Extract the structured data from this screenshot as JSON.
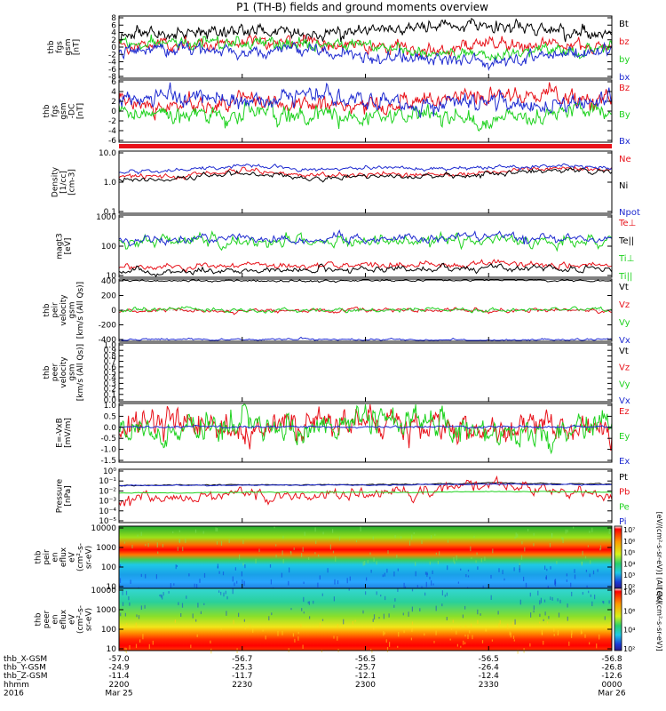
{
  "title": "P1 (TH-B) fields and ground moments overview",
  "colors": {
    "black": "#000000",
    "red": "#e8131b",
    "green": "#1fd21f",
    "blue": "#1f2bd0"
  },
  "panels": [
    {
      "id": "fgs-gsm",
      "ylabel": [
        "thb",
        "fgs",
        "gsm",
        "[nT]"
      ],
      "yticks": [
        "8",
        "6",
        "4",
        "2",
        "0",
        "-2",
        "-4",
        "-6",
        "-8"
      ],
      "legend": [
        {
          "text": "Bt",
          "color": "black"
        },
        {
          "text": "bz",
          "color": "red"
        },
        {
          "text": "by",
          "color": "green"
        },
        {
          "text": "bx",
          "color": "blue"
        }
      ]
    },
    {
      "id": "fgs-gsm-dc",
      "ylabel": [
        "thb",
        "fgs",
        "gsm",
        "-DC",
        "[nT]"
      ],
      "yticks": [
        "6",
        "4",
        "2",
        "0",
        "-2",
        "-4",
        "-6"
      ],
      "legend": [
        {
          "text": "Bz",
          "color": "red"
        },
        {
          "text": "By",
          "color": "green"
        },
        {
          "text": "Bx",
          "color": "blue"
        }
      ]
    },
    {
      "id": "density",
      "ylabel": [
        "Density",
        "[1/cc]",
        "[cm-3]"
      ],
      "yticks": [
        "10.0",
        "1.0",
        "0.1"
      ],
      "legend": [
        {
          "text": "Ne",
          "color": "red"
        },
        {
          "text": "Ni",
          "color": "black"
        },
        {
          "text": "Npot",
          "color": "blue"
        }
      ]
    },
    {
      "id": "temperature",
      "ylabel": [
        "magt3",
        "[eV]"
      ],
      "yticks": [
        "1000",
        "100",
        "10"
      ],
      "legend": [
        {
          "text": "Te⊥",
          "color": "red"
        },
        {
          "text": "Te||",
          "color": "black"
        },
        {
          "text": "Ti⊥",
          "color": "green"
        },
        {
          "text": "Ti||",
          "color": "green"
        }
      ]
    },
    {
      "id": "peir-velocity",
      "ylabel": [
        "thb",
        "peir",
        "velocity",
        "gsm",
        "[km/s (All Qs)]"
      ],
      "yticks": [
        "400",
        "200",
        "0",
        "-200",
        "-400"
      ],
      "legend": [
        {
          "text": "Vt",
          "color": "black"
        },
        {
          "text": "Vz",
          "color": "red"
        },
        {
          "text": "Vy",
          "color": "green"
        },
        {
          "text": "Vx",
          "color": "blue"
        }
      ]
    },
    {
      "id": "peer-velocity",
      "ylabel": [
        "thb",
        "peer",
        "velocity",
        "gsm",
        "[km/s (All Qs)]"
      ],
      "yticks": [
        "1.0",
        "0.9",
        "0.8",
        "0.7",
        "0.6",
        "0.5",
        "0.4",
        "0.3",
        "0.2",
        "0.1",
        "0.0"
      ],
      "legend": [
        {
          "text": "Vt",
          "color": "black"
        },
        {
          "text": "Vz",
          "color": "red"
        },
        {
          "text": "Vy",
          "color": "green"
        },
        {
          "text": "Vx",
          "color": "blue"
        }
      ]
    },
    {
      "id": "efield",
      "ylabel": [
        "E=-VxB",
        "[mV/m]"
      ],
      "yticks": [
        "1.0",
        "0.5",
        "0.0",
        "-0.5",
        "-1.0",
        "-1.5"
      ],
      "legend": [
        {
          "text": "Ez",
          "color": "red"
        },
        {
          "text": "Ey",
          "color": "green"
        },
        {
          "text": "Ex",
          "color": "blue"
        }
      ]
    },
    {
      "id": "pressure",
      "ylabel": [
        "Pressure",
        "[nPa]"
      ],
      "yticks": [
        "10⁰",
        "10⁻¹",
        "10⁻²",
        "10⁻³",
        "10⁻⁴",
        "10⁻⁵"
      ],
      "legend": [
        {
          "text": "Pt",
          "color": "black"
        },
        {
          "text": "Pb",
          "color": "red"
        },
        {
          "text": "Pe",
          "color": "green"
        },
        {
          "text": "Pi",
          "color": "blue"
        }
      ]
    },
    {
      "id": "peir-spec",
      "ylabel": [
        "thb",
        "peir",
        "en",
        "eflux",
        "eV",
        "(cm²-s-",
        "sr-eV)"
      ],
      "yticks": [
        "10000",
        "1000",
        "100",
        "10"
      ],
      "colorbar": [
        "10⁷",
        "10⁶",
        "10⁵",
        "10⁴",
        "10³",
        "10²"
      ],
      "cblabel": "[eV/(cm²-s-sr-eV)] (All Qs)"
    },
    {
      "id": "peer-spec",
      "ylabel": [
        "thb",
        "peer",
        "en",
        "eflux",
        "eV",
        "(cm²-s-",
        "sr-eV)"
      ],
      "yticks": [
        "10000",
        "1000",
        "100",
        "10"
      ],
      "colorbar": [
        "10⁸",
        "10⁶",
        "10⁴",
        "10²"
      ],
      "cblabel": "[eV/(cm²-s-sr-eV)]"
    }
  ],
  "xaxis": {
    "rows": [
      {
        "label": "thb_X-GSM",
        "values": [
          "-57.0",
          "-56.7",
          "-56.5",
          "-56.5",
          "-56.8"
        ]
      },
      {
        "label": "thb_Y-GSM",
        "values": [
          "-24.9",
          "-25.3",
          "-25.7",
          "-26.4",
          "-26.8"
        ]
      },
      {
        "label": "thb_Z-GSM",
        "values": [
          "-11.4",
          "-11.7",
          "-12.1",
          "-12.4",
          "-12.6"
        ]
      },
      {
        "label": "hhmm",
        "values": [
          "2200",
          "2230",
          "2300",
          "2330",
          "0000"
        ]
      },
      {
        "label": "2016",
        "values": [
          "Mar 25",
          "",
          "",
          "",
          "Mar 26"
        ]
      }
    ]
  },
  "chart_data": {
    "type": "line",
    "title": "P1 (TH-B) fields and ground moments overview",
    "time_ticks": [
      "2200",
      "2230",
      "2300",
      "2330",
      "0000"
    ],
    "panels": [
      {
        "name": "thb fgs gsm",
        "unit": "nT",
        "ylim": [
          -8,
          8
        ],
        "series": [
          {
            "name": "Bt",
            "values": [
              3,
              3.5,
              4,
              3.5,
              4,
              5.5,
              6,
              4.5,
              3
            ]
          },
          {
            "name": "bz",
            "values": [
              1,
              0.5,
              0.8,
              1,
              0.5,
              -1,
              1,
              1,
              0
            ]
          },
          {
            "name": "by",
            "values": [
              1,
              1.5,
              0.5,
              1,
              1,
              -2,
              -2,
              -1,
              0
            ]
          },
          {
            "name": "bx",
            "values": [
              -1,
              -0.5,
              -1.5,
              -1,
              -2,
              -3,
              -4,
              -2,
              -1
            ]
          }
        ]
      },
      {
        "name": "thb fgs gsm-DC",
        "unit": "nT",
        "ylim": [
          -6,
          6
        ],
        "series": [
          {
            "name": "Bz",
            "values": [
              2,
              1,
              2,
              1,
              1,
              2,
              3,
              3,
              2
            ]
          },
          {
            "name": "By",
            "values": [
              0,
              -1,
              0,
              -1,
              -1,
              0,
              -2,
              0,
              0
            ]
          },
          {
            "name": "Bx",
            "values": [
              2,
              3,
              2,
              3,
              2,
              1,
              2,
              1,
              2
            ]
          }
        ]
      },
      {
        "name": "Density",
        "unit": "1/cc",
        "ylim": [
          0.1,
          10
        ],
        "scale": "log",
        "series": [
          {
            "name": "Ne",
            "values": [
              1.4,
              1.6,
              2.4,
              1.6,
              1.8,
              1.7,
              2.1,
              3.0,
              2.4
            ]
          },
          {
            "name": "Ni",
            "values": [
              1.2,
              1.3,
              2.0,
              1.3,
              1.5,
              1.4,
              1.7,
              2.6,
              2.0
            ]
          },
          {
            "name": "Npot",
            "values": [
              2.0,
              2.5,
              3.5,
              2.6,
              2.8,
              2.6,
              3.0,
              3.6,
              3.0
            ]
          }
        ]
      },
      {
        "name": "magt3",
        "unit": "eV",
        "ylim": [
          10,
          1000
        ],
        "scale": "log",
        "series": [
          {
            "name": "Te⊥",
            "values": [
              20,
              22,
              25,
              24,
              25,
              24,
              28,
              26,
              25
            ]
          },
          {
            "name": "Te||",
            "values": [
              15,
              16,
              18,
              18,
              17,
              18,
              20,
              19,
              18
            ]
          },
          {
            "name": "Ti⊥",
            "values": [
              130,
              140,
              150,
              140,
              150,
              140,
              170,
              150,
              140
            ]
          },
          {
            "name": "Ti||",
            "values": [
              160,
              170,
              180,
              170,
              175,
              170,
              220,
              190,
              170
            ]
          }
        ]
      },
      {
        "name": "thb peir velocity gsm",
        "unit": "km/s",
        "ylim": [
          -400,
          400
        ],
        "series": [
          {
            "name": "Vt",
            "values": [
              380,
              375,
              380,
              375,
              380,
              385,
              390,
              380,
              375
            ]
          },
          {
            "name": "Vz",
            "values": [
              -10,
              0,
              -20,
              -5,
              10,
              0,
              -5,
              0,
              -10
            ]
          },
          {
            "name": "Vy",
            "values": [
              0,
              10,
              -10,
              0,
              5,
              10,
              0,
              5,
              0
            ]
          },
          {
            "name": "Vx",
            "values": [
              -380,
              -375,
              -380,
              -370,
              -380,
              -385,
              -390,
              -380,
              -375
            ]
          }
        ]
      },
      {
        "name": "E=-VxB",
        "unit": "mV/m",
        "ylim": [
          -1.5,
          1.0
        ],
        "series": [
          {
            "name": "Ez",
            "values": [
              0,
              0.2,
              -0.3,
              0.1,
              0.3,
              0,
              -0.2,
              0,
              -0.2
            ]
          },
          {
            "name": "Ey",
            "values": [
              -0.1,
              -0.3,
              0.2,
              -0.2,
              0.4,
              0.3,
              -0.4,
              -0.2,
              0.1
            ]
          },
          {
            "name": "Ex",
            "values": [
              0,
              0,
              0,
              0,
              0,
              0,
              0,
              0,
              0
            ]
          }
        ]
      },
      {
        "name": "Pressure",
        "unit": "nPa",
        "ylim": [
          1e-05,
          1
        ],
        "scale": "log",
        "series": [
          {
            "name": "Pt",
            "values": [
              0.03,
              0.032,
              0.035,
              0.034,
              0.036,
              0.04,
              0.05,
              0.045,
              0.04
            ]
          },
          {
            "name": "Pb",
            "values": [
              0.001,
              0.002,
              0.003,
              0.002,
              0.004,
              0.01,
              0.03,
              0.008,
              0.002
            ]
          },
          {
            "name": "Pe",
            "values": [
              0.006,
              0.006,
              0.007,
              0.007,
              0.007,
              0.007,
              0.008,
              0.008,
              0.007
            ]
          },
          {
            "name": "Pi",
            "values": [
              0.03,
              0.03,
              0.032,
              0.032,
              0.034,
              0.036,
              0.04,
              0.038,
              0.036
            ]
          }
        ]
      }
    ]
  }
}
